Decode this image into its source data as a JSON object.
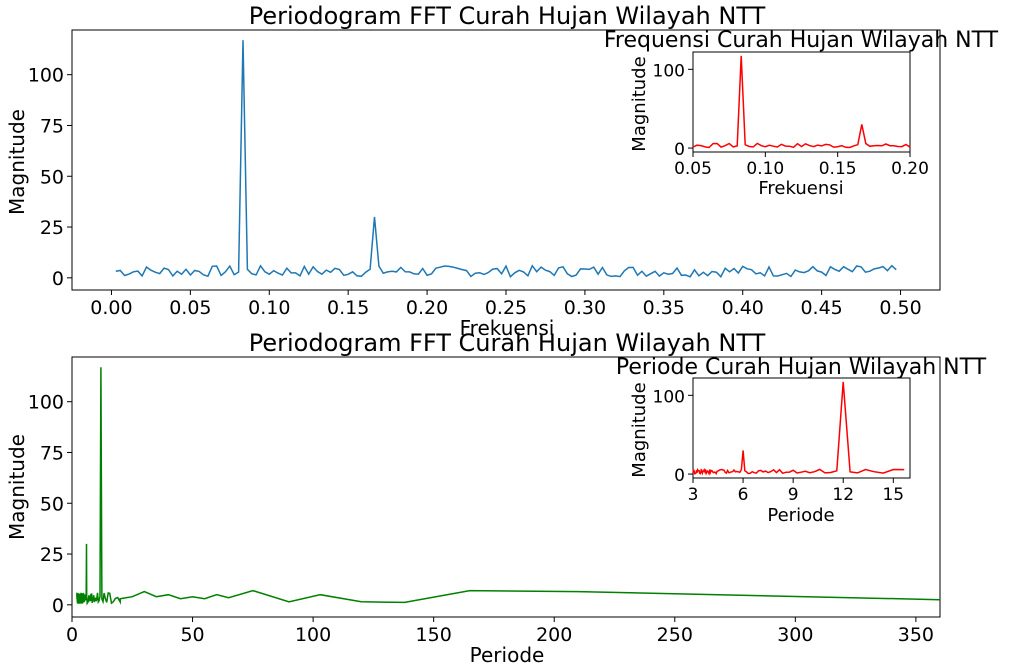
{
  "chart_data": [
    {
      "type": "line",
      "title": "Periodogram FFT Curah Hujan Wilayah NTT",
      "xlabel": "Frekuensi",
      "ylabel": "Magnitude",
      "xlim": [
        -0.025,
        0.525
      ],
      "ylim": [
        -6,
        122
      ],
      "xticks": [
        "0.00",
        "0.05",
        "0.10",
        "0.15",
        "0.20",
        "0.25",
        "0.30",
        "0.35",
        "0.40",
        "0.45",
        "0.50"
      ],
      "yticks": [
        "0",
        "25",
        "50",
        "75",
        "100"
      ],
      "color": "#1f77b4",
      "series": [
        {
          "peaks": [
            {
              "x": 0.0833,
              "y": 117
            },
            {
              "x": 0.1667,
              "y": 30
            }
          ],
          "noise_level": 3,
          "x_range": [
            0.0028,
            0.4972
          ]
        }
      ],
      "inset": {
        "title": "Frequensi Curah Hujan Wilayah NTT",
        "xlabel": "Frekuensi",
        "ylabel": "Magnitude",
        "xlim": [
          0.05,
          0.2
        ],
        "ylim": [
          -5,
          122
        ],
        "xticks": [
          "0.05",
          "0.10",
          "0.15",
          "0.20"
        ],
        "yticks": [
          "0",
          "100"
        ],
        "color": "#ff0000"
      }
    },
    {
      "type": "line",
      "title": "Periodogram FFT Curah Hujan Wilayah NTT",
      "xlabel": "Periode",
      "ylabel": "Magnitude",
      "xlim": [
        0,
        360
      ],
      "ylim": [
        -6,
        122
      ],
      "xticks": [
        "0",
        "50",
        "100",
        "150",
        "200",
        "250",
        "300",
        "350"
      ],
      "yticks": [
        "0",
        "25",
        "50",
        "75",
        "100"
      ],
      "color": "#008000",
      "series": [
        {
          "peaks": [
            {
              "x": 12,
              "y": 117
            },
            {
              "x": 6,
              "y": 30
            }
          ],
          "tail": [
            {
              "x": 20,
              "y": 3
            },
            {
              "x": 25,
              "y": 4
            },
            {
              "x": 30,
              "y": 6.5
            },
            {
              "x": 35,
              "y": 4
            },
            {
              "x": 40,
              "y": 5
            },
            {
              "x": 45,
              "y": 3
            },
            {
              "x": 50,
              "y": 4
            },
            {
              "x": 55,
              "y": 3
            },
            {
              "x": 60,
              "y": 5
            },
            {
              "x": 65,
              "y": 3.5
            },
            {
              "x": 75,
              "y": 7
            },
            {
              "x": 90,
              "y": 1.5
            },
            {
              "x": 103,
              "y": 5
            },
            {
              "x": 120,
              "y": 1.5
            },
            {
              "x": 138,
              "y": 1.2
            },
            {
              "x": 165,
              "y": 7
            },
            {
              "x": 210,
              "y": 6.5
            },
            {
              "x": 360,
              "y": 2.5
            }
          ]
        }
      ],
      "inset": {
        "title": "Periode Curah Hujan Wilayah NTT",
        "xlabel": "Periode",
        "ylabel": "Magnitude",
        "xlim": [
          3,
          16
        ],
        "ylim": [
          -5,
          122
        ],
        "xticks": [
          "3",
          "6",
          "9",
          "12",
          "15"
        ],
        "yticks": [
          "0",
          "100"
        ],
        "color": "#ff0000"
      }
    }
  ]
}
